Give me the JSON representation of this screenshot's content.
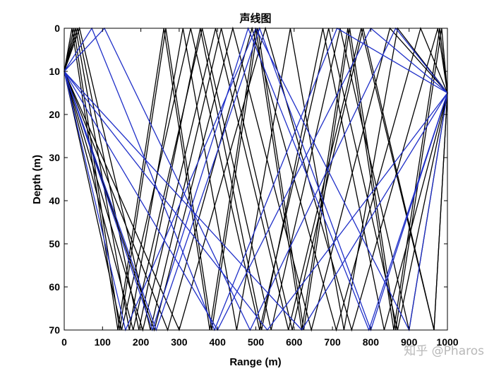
{
  "chart_data": {
    "type": "line",
    "title": "声线图",
    "xlabel": "Range (m)",
    "ylabel": "Depth (m)",
    "xlim": [
      0,
      1000
    ],
    "ylim": [
      0,
      70
    ],
    "y_reversed": true,
    "xticks": [
      0,
      100,
      200,
      300,
      400,
      500,
      600,
      700,
      800,
      900,
      1000
    ],
    "yticks": [
      0,
      10,
      20,
      30,
      40,
      50,
      60,
      70
    ],
    "grid": false,
    "colors": {
      "black_rays": "#000000",
      "blue_rays": "#1f2fc8"
    },
    "source": {
      "range": 0,
      "depth": 10
    },
    "receiver": {
      "range": 1000,
      "depth": 15
    },
    "series": [
      {
        "color": "black_rays",
        "x": [
          0,
          25,
          145,
          265,
          385,
          505,
          625,
          745,
          865,
          985,
          1000
        ],
        "y": [
          10,
          0,
          70,
          0,
          70,
          0,
          70,
          0,
          70,
          0,
          15
        ]
      },
      {
        "color": "black_rays",
        "x": [
          0,
          30,
          170,
          310,
          450,
          590,
          730,
          870,
          1000
        ],
        "y": [
          10,
          0,
          70,
          0,
          70,
          0,
          70,
          0,
          15
        ]
      },
      {
        "color": "black_rays",
        "x": [
          0,
          35,
          195,
          355,
          515,
          675,
          835,
          1000
        ],
        "y": [
          10,
          0,
          70,
          0,
          70,
          0,
          70,
          15
        ]
      },
      {
        "color": "black_rays",
        "x": [
          0,
          40,
          225,
          410,
          595,
          780,
          965,
          1000
        ],
        "y": [
          10,
          0,
          70,
          0,
          70,
          0,
          70,
          15
        ]
      },
      {
        "color": "black_rays",
        "x": [
          0,
          20,
          140,
          260,
          380,
          500,
          620,
          740,
          860,
          980,
          1000
        ],
        "y": [
          10,
          0,
          70,
          0,
          70,
          0,
          70,
          0,
          70,
          0,
          15
        ]
      },
      {
        "color": "black_rays",
        "x": [
          0,
          150,
          330,
          510,
          690,
          870,
          1000
        ],
        "y": [
          10,
          70,
          0,
          70,
          0,
          70,
          15
        ]
      },
      {
        "color": "black_rays",
        "x": [
          0,
          180,
          360,
          540,
          720,
          900,
          1000
        ],
        "y": [
          10,
          70,
          0,
          70,
          0,
          70,
          15
        ]
      },
      {
        "color": "black_rays",
        "x": [
          0,
          205,
          395,
          585,
          775,
          965,
          1000
        ],
        "y": [
          10,
          70,
          0,
          70,
          0,
          70,
          15
        ]
      },
      {
        "color": "black_rays",
        "x": [
          0,
          235,
          440,
          645,
          850,
          1000
        ],
        "y": [
          10,
          70,
          0,
          70,
          0,
          15
        ]
      },
      {
        "color": "black_rays",
        "x": [
          0,
          270,
          490,
          710,
          930,
          1000
        ],
        "y": [
          10,
          70,
          0,
          70,
          0,
          15
        ]
      },
      {
        "color": "black_rays",
        "x": [
          0,
          300,
          525,
          750,
          975,
          1000
        ],
        "y": [
          10,
          70,
          0,
          70,
          0,
          15
        ]
      },
      {
        "color": "blue_rays",
        "x": [
          0,
          72,
          392,
          712,
          1000
        ],
        "y": [
          10,
          0,
          70,
          0,
          15
        ]
      },
      {
        "color": "blue_rays",
        "x": [
          0,
          105,
          485,
          865,
          1000
        ],
        "y": [
          10,
          0,
          70,
          0,
          15
        ]
      },
      {
        "color": "blue_rays",
        "x": [
          0,
          240,
          510,
          800,
          1000
        ],
        "y": [
          10,
          70,
          0,
          70,
          15
        ]
      },
      {
        "color": "blue_rays",
        "x": [
          0,
          230,
          480,
          795,
          1000
        ],
        "y": [
          10,
          70,
          0,
          70,
          15
        ]
      },
      {
        "color": "blue_rays",
        "x": [
          0,
          400,
          800,
          1000
        ],
        "y": [
          10,
          70,
          0,
          15
        ]
      },
      {
        "color": "blue_rays",
        "x": [
          0,
          530,
          1000
        ],
        "y": [
          10,
          70,
          15
        ]
      },
      {
        "color": "blue_rays",
        "x": [
          0,
          620,
          1000
        ],
        "y": [
          10,
          70,
          15
        ]
      },
      {
        "color": "blue_rays",
        "x": [
          0,
          160,
          500,
          900,
          1000
        ],
        "y": [
          10,
          70,
          0,
          70,
          15
        ]
      }
    ]
  },
  "watermark": "知乎 @Pharos"
}
